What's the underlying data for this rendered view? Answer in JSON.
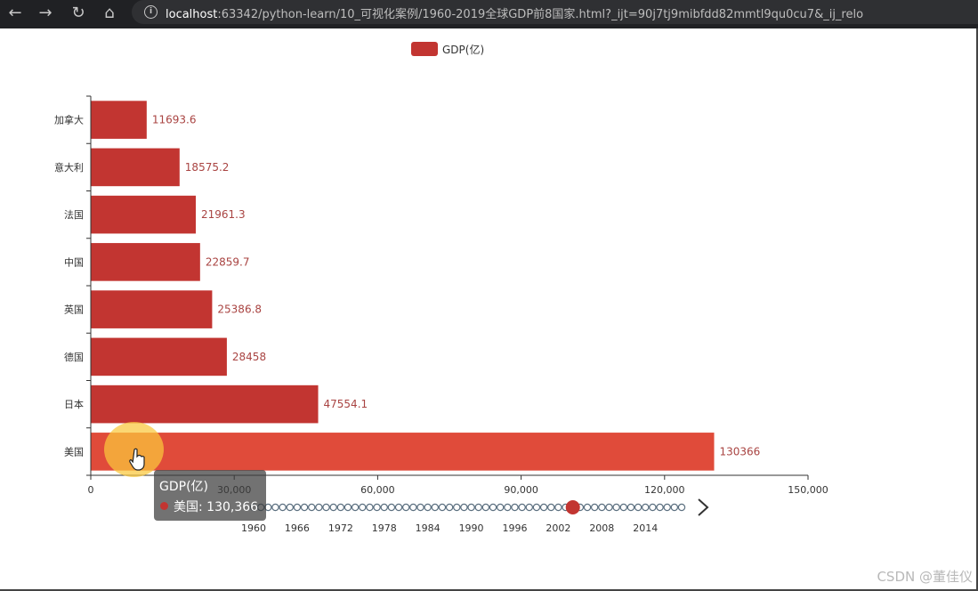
{
  "browser": {
    "url_host": "localhost",
    "url_rest": ":63342/python-learn/10_可视化案例/1960-2019全球GDP前8国家.html?_ijt=90j7tj9mibfdd82mmtl9qu0cu7&_ij_relo"
  },
  "chart_data": {
    "type": "bar",
    "orientation": "horizontal",
    "legend": "GDP(亿)",
    "legend_position": "top-center",
    "categories": [
      "美国",
      "日本",
      "德国",
      "英国",
      "中国",
      "法国",
      "意大利",
      "加拿大"
    ],
    "series": [
      {
        "name": "GDP(亿)",
        "color": "#c23531",
        "values": [
          130366,
          47554.1,
          28458,
          25386.8,
          22859.7,
          21961.3,
          18575.2,
          11693.6
        ],
        "labels": [
          "130366",
          "47554.1",
          "28458",
          "25386.8",
          "22859.7",
          "21961.3",
          "18575.2",
          "11693.6"
        ]
      }
    ],
    "xlim": [
      0,
      150000
    ],
    "xticks": [
      0,
      30000,
      60000,
      90000,
      120000,
      150000
    ],
    "xtick_labels": [
      "0",
      "30,000",
      "60,000",
      "90,000",
      "120,000",
      "150,000"
    ],
    "grid": false,
    "highlighted_category": "美国",
    "highlight_color": "#e04b3a"
  },
  "timeline": {
    "years": [
      "1960",
      "1966",
      "1972",
      "1978",
      "1984",
      "1990",
      "1996",
      "2002",
      "2008",
      "2014"
    ],
    "current_year": "2004",
    "year_range": [
      1960,
      2019
    ]
  },
  "tooltip": {
    "title": "GDP(亿)",
    "row": "美国: 130,366"
  },
  "watermark": "CSDN @董佳仪"
}
